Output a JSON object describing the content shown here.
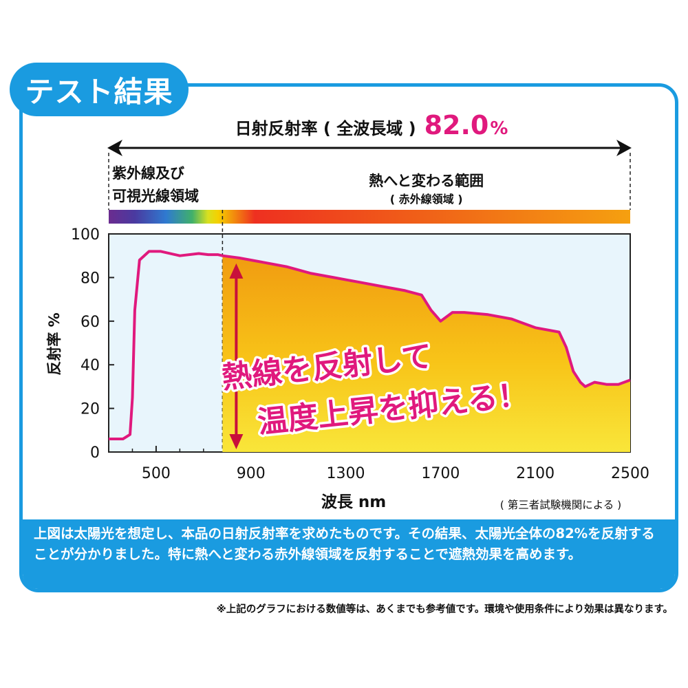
{
  "title_tab": "テスト結果",
  "headline": {
    "label": "日射反射率 ( 全波長域 )",
    "value": "82.0",
    "unit": "%"
  },
  "regions": {
    "uv_visible": [
      "紫外線及び",
      "可視光線領域"
    ],
    "infrared_title": "熱へと変わる範囲",
    "infrared_sub": "( 赤外線領域 )"
  },
  "callout": [
    "熱線を反射して",
    "温度上昇を抑える！"
  ],
  "source_note": "( 第三者試験機関による )",
  "summary": "上図は太陽光を想定し、本品の日射反射率を求めたものです。その結果、太陽光全体の82%を反射することが分かりました。特に熱へと変わる赤外線領域を反射することで遮熱効果を高めます。",
  "footnote": "※上記のグラフにおける数値等は、あくまでも参考値です。環境や使用条件により効果は異なります。",
  "colors": {
    "accent": "#1a9be0",
    "curve": "#e0197d",
    "arrow": "#c8103b",
    "panel": "#e8f5fc"
  },
  "chart_data": {
    "type": "line",
    "xlabel": "波長 nm",
    "ylabel": "反射率 %",
    "xlim": [
      300,
      2500
    ],
    "ylim": [
      0,
      100
    ],
    "xticks": [
      500,
      900,
      1300,
      1700,
      2100,
      2500
    ],
    "yticks": [
      0,
      20,
      40,
      60,
      80,
      100
    ],
    "boundary_nm": 780,
    "series": [
      {
        "x": [
          300,
          360,
          390,
          400,
          410,
          430,
          470,
          520,
          600,
          680,
          720,
          760,
          780,
          850,
          950,
          1050,
          1150,
          1250,
          1350,
          1450,
          1550,
          1620,
          1660,
          1700,
          1750,
          1800,
          1900,
          2000,
          2100,
          2200,
          2230,
          2260,
          2290,
          2310,
          2350,
          2400,
          2450,
          2500
        ],
        "y": [
          6,
          6,
          8,
          25,
          65,
          88,
          92,
          92,
          90,
          91,
          90.5,
          90.5,
          90,
          89,
          87,
          85,
          82,
          80,
          78,
          76,
          74,
          72,
          65,
          60,
          64,
          64,
          63,
          61,
          57,
          55,
          48,
          37,
          32,
          30,
          32,
          31,
          31,
          33
        ]
      }
    ]
  }
}
